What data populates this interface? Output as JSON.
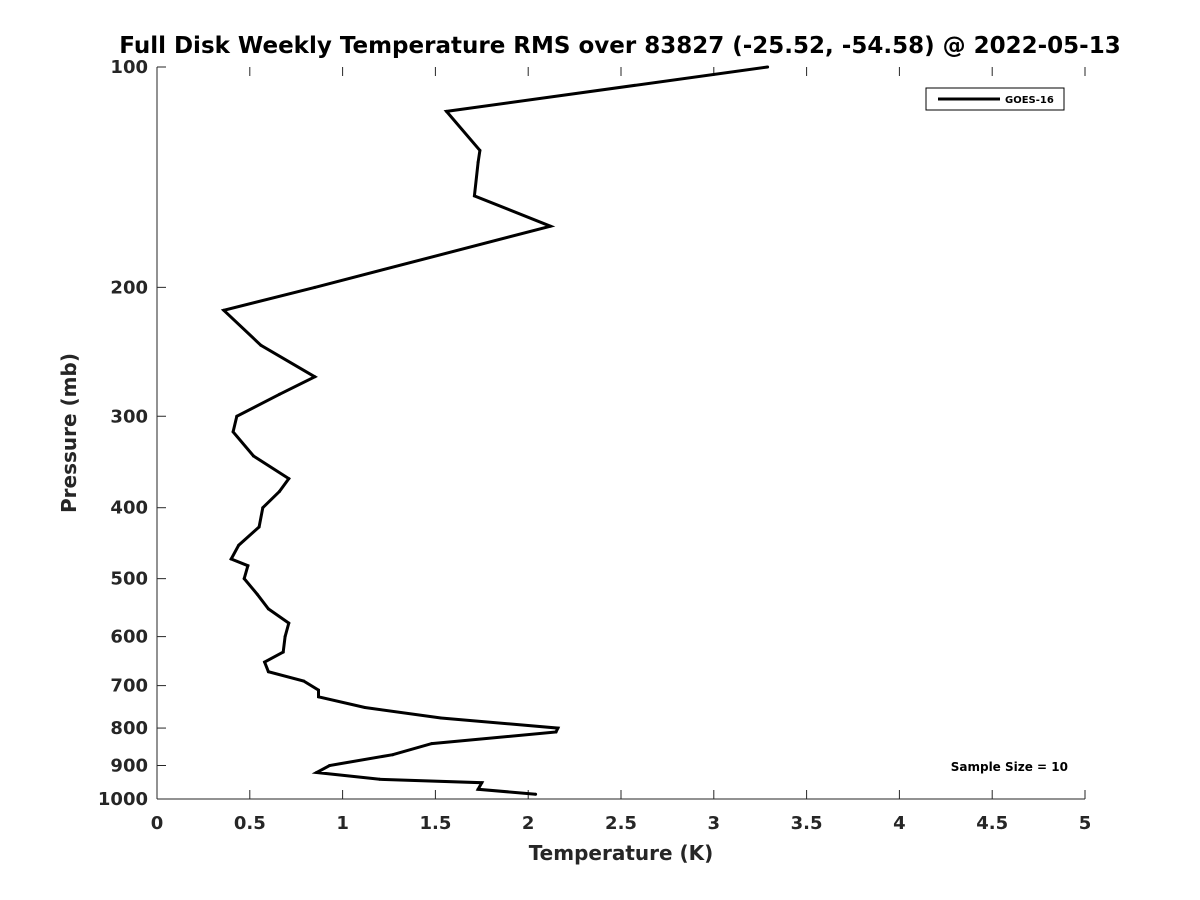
{
  "chart_data": {
    "type": "line",
    "title": "Full Disk Weekly Temperature RMS over 83827 (-25.52, -54.58) @ 2022-05-13",
    "xlabel": "Temperature (K)",
    "ylabel": "Pressure (mb)",
    "xlim": [
      0,
      5
    ],
    "ylim": [
      100,
      1000
    ],
    "y_scale": "log",
    "y_reversed": true,
    "x_ticks": [
      "0",
      "0.5",
      "1",
      "1.5",
      "2",
      "2.5",
      "3",
      "3.5",
      "4",
      "4.5",
      "5"
    ],
    "y_ticks": [
      "100",
      "200",
      "300",
      "400",
      "500",
      "600",
      "700",
      "800",
      "900",
      "1000"
    ],
    "grid": false,
    "legend_position": "top-right",
    "line_color": "#000000",
    "series": [
      {
        "name": "GOES-16",
        "x": [
          3.29,
          1.56,
          1.74,
          1.73,
          1.71,
          2.12,
          0.85,
          0.36,
          0.56,
          0.85,
          0.66,
          0.43,
          0.41,
          0.52,
          0.71,
          0.66,
          0.57,
          0.55,
          0.44,
          0.4,
          0.49,
          0.47,
          0.54,
          0.6,
          0.71,
          0.69,
          0.68,
          0.58,
          0.6,
          0.79,
          0.87,
          0.87,
          1.12,
          1.53,
          2.16,
          2.15,
          1.48,
          1.27,
          0.93,
          0.86,
          1.2,
          1.75,
          1.73,
          2.04
        ],
        "y": [
          100,
          115,
          130,
          135,
          150,
          165,
          200,
          215,
          240,
          265,
          280,
          300,
          315,
          340,
          365,
          380,
          400,
          425,
          450,
          470,
          480,
          500,
          525,
          550,
          575,
          600,
          630,
          650,
          670,
          690,
          710,
          725,
          750,
          775,
          800,
          810,
          840,
          870,
          900,
          920,
          940,
          950,
          970,
          985
        ]
      }
    ],
    "annotations": [
      {
        "text": "Sample Size = 10"
      }
    ]
  }
}
